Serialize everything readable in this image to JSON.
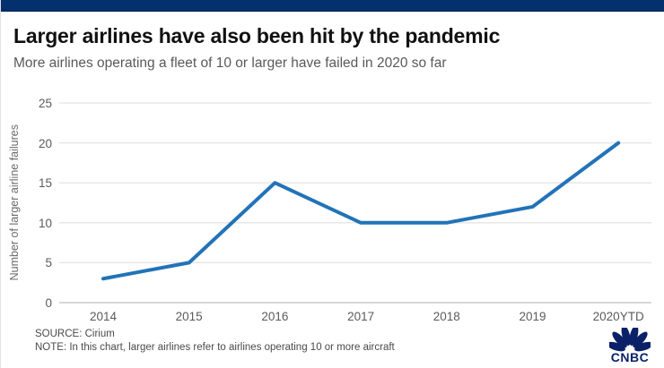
{
  "header": {
    "title": "Larger airlines have also been hit by the pandemic",
    "subtitle": "More airlines operating a fleet of 10 or larger have failed in 2020 so far"
  },
  "chart_data": {
    "type": "line",
    "title": "Larger airlines have also been hit by the pandemic",
    "subtitle": "More airlines operating a fleet of 10 or larger have failed in 2020 so far",
    "categories": [
      "2014",
      "2015",
      "2016",
      "2017",
      "2018",
      "2019",
      "2020YTD"
    ],
    "values": [
      3,
      5,
      15,
      10,
      10,
      12,
      20
    ],
    "series": [
      {
        "name": "Number of larger airline failures",
        "values": [
          3,
          5,
          15,
          10,
          10,
          12,
          20
        ]
      }
    ],
    "xlabel": "",
    "ylabel": "Number of larger airline failures",
    "yticks": [
      0,
      5,
      10,
      15,
      20,
      25
    ],
    "ylim": [
      0,
      25
    ],
    "grid": "horizontal",
    "legend_position": "none",
    "line_color": "#2273b8",
    "gridline_color": "#e4e4e4",
    "zeroline_color": "#bfbfbf"
  },
  "footer": {
    "source": "SOURCE: Cirium",
    "note": "NOTE: In this chart, larger airlines refer to airlines operating 10 or more aircraft",
    "logo_text": "CNBC"
  },
  "colors": {
    "brand_bar": "#04306e",
    "title_text": "#111111",
    "subtitle_text": "#58595b",
    "axis_text": "#5b5b5b",
    "logo_navy": "#0a2168"
  }
}
